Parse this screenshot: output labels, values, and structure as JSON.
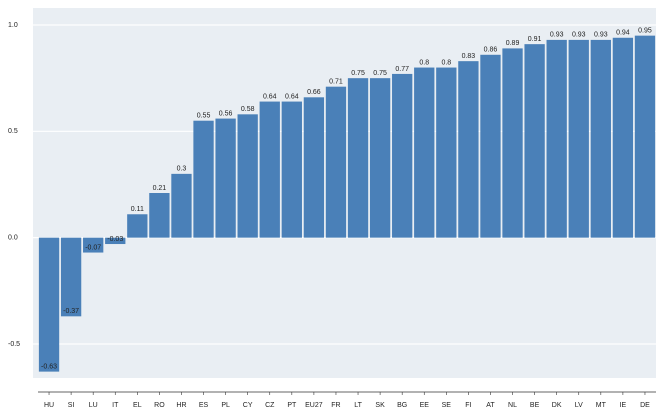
{
  "chart_data": {
    "type": "bar",
    "categories": [
      "HU",
      "SI",
      "LU",
      "IT",
      "EL",
      "RO",
      "HR",
      "ES",
      "PL",
      "CY",
      "CZ",
      "PT",
      "EU27",
      "FR",
      "LT",
      "SK",
      "BG",
      "EE",
      "SE",
      "FI",
      "AT",
      "NL",
      "BE",
      "DK",
      "LV",
      "MT",
      "IE",
      "DE"
    ],
    "values": [
      -0.63,
      -0.37,
      -0.07,
      -0.03,
      0.11,
      0.21,
      0.3,
      0.55,
      0.56,
      0.58,
      0.64,
      0.64,
      0.66,
      0.71,
      0.75,
      0.75,
      0.77,
      0.8,
      0.8,
      0.83,
      0.86,
      0.89,
      0.91,
      0.93,
      0.93,
      0.93,
      0.94,
      0.95
    ],
    "color": "#4a80b8",
    "ylim": [
      -0.66,
      1.08
    ],
    "yticks": [
      {
        "value": -0.5,
        "label": "-0.5"
      },
      {
        "value": 0,
        "label": "0.0"
      },
      {
        "value": 0.5,
        "label": "0.5"
      },
      {
        "value": 1,
        "label": "1.0"
      }
    ],
    "grid": true
  }
}
